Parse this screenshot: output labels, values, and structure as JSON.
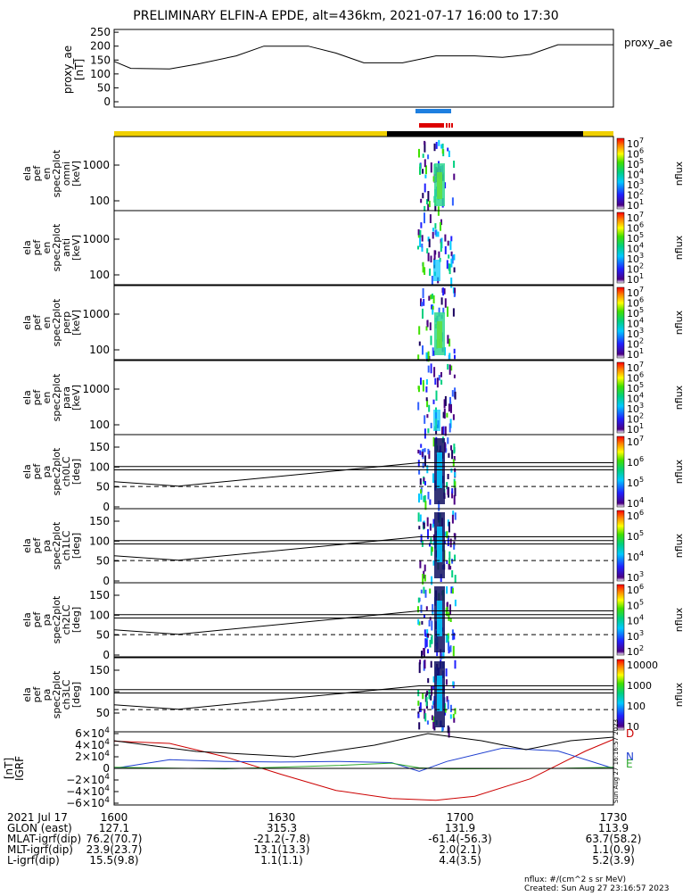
{
  "title": "PRELIMINARY ELFIN-A EPDE, alt=436km, 2021-07-17 16:00 to 17:30",
  "ae_panel": {
    "ylabel": "proxy_ae\n[nT]",
    "legend": "proxy_ae",
    "yticks": [
      "250",
      "200",
      "150",
      "100",
      "50",
      "0"
    ]
  },
  "spec_panels": [
    {
      "ylabel_lines": [
        "ela",
        "pef",
        "en",
        "spec2plot",
        "omni",
        "[keV]"
      ],
      "yticks": [
        "1000",
        "100"
      ],
      "cb_ticks": [
        "10^7",
        "10^6",
        "10^5",
        "10^4",
        "10^3",
        "10^2",
        "10^1"
      ],
      "cb_label": "nflux"
    },
    {
      "ylabel_lines": [
        "ela",
        "pef",
        "en",
        "spec2plot",
        "anti",
        "[keV]"
      ],
      "yticks": [
        "1000",
        "100"
      ],
      "cb_ticks": [
        "10^7",
        "10^6",
        "10^5",
        "10^4",
        "10^3",
        "10^2",
        "10^1"
      ],
      "cb_label": "nflux"
    },
    {
      "ylabel_lines": [
        "ela",
        "pef",
        "en",
        "spec2plot",
        "perp",
        "[keV]"
      ],
      "yticks": [
        "1000",
        "100"
      ],
      "cb_ticks": [
        "10^7",
        "10^6",
        "10^5",
        "10^4",
        "10^3",
        "10^2",
        "10^1"
      ],
      "cb_label": "nflux"
    },
    {
      "ylabel_lines": [
        "ela",
        "pef",
        "en",
        "spec2plot",
        "para",
        "[keV]"
      ],
      "yticks": [
        "1000",
        "100"
      ],
      "cb_ticks": [
        "10^7",
        "10^6",
        "10^5",
        "10^4",
        "10^3",
        "10^2",
        "10^1"
      ],
      "cb_label": "nflux"
    },
    {
      "ylabel_lines": [
        "ela",
        "pef",
        "pa",
        "spec2plot",
        "ch0LC",
        "[deg]"
      ],
      "yticks": [
        "150",
        "100",
        "50",
        "0"
      ],
      "cb_ticks": [
        "10^7",
        "10^6",
        "10^5",
        "10^4"
      ],
      "cb_label": "nflux"
    },
    {
      "ylabel_lines": [
        "ela",
        "pef",
        "pa",
        "spec2plot",
        "ch1LC",
        "[deg]"
      ],
      "yticks": [
        "150",
        "100",
        "50",
        "0"
      ],
      "cb_ticks": [
        "10^6",
        "10^5",
        "10^4",
        "10^3"
      ],
      "cb_label": "nflux"
    },
    {
      "ylabel_lines": [
        "ela",
        "pef",
        "pa",
        "spec2plot",
        "ch2LC",
        "[deg]"
      ],
      "yticks": [
        "150",
        "100",
        "50",
        "0"
      ],
      "cb_ticks": [
        "10^6",
        "10^5",
        "10^4",
        "10^3",
        "10^2"
      ],
      "cb_label": "nflux"
    },
    {
      "ylabel_lines": [
        "ela",
        "pef",
        "pa",
        "spec2plot",
        "ch3LC",
        "[deg]"
      ],
      "yticks": [
        "150",
        "100",
        "50"
      ],
      "cb_ticks": [
        "10000",
        "1000",
        "100",
        "10"
      ],
      "cb_label": "nflux"
    }
  ],
  "bfield_panel": {
    "ylabel": "[nT]\nIGRF",
    "yticks": [
      "6×10^4",
      "4×10^4",
      "2×10^4",
      "0",
      "−2×10^4",
      "−4×10^4",
      "−6×10^4"
    ],
    "legend": [
      {
        "name": "D",
        "color": "#cc0000"
      },
      {
        "name": "N",
        "color": "#1f3fd0"
      },
      {
        "name": "E",
        "color": "#2ea82e"
      }
    ],
    "side_text": "Sun Aug 27 16:16:57 2023"
  },
  "footer": {
    "rows": [
      [
        "2021 Jul 17",
        "1600",
        "1630",
        "1700",
        "1730"
      ],
      [
        "GLON (east)",
        "127.1",
        "315.3",
        "131.9",
        "113.9"
      ],
      [
        "MLAT-igrf(dip)",
        "76.2(70.7)",
        "-21.2(-7.8)",
        "-61.4(-56.3)",
        "63.7(58.2)"
      ],
      [
        "MLT-igrf(dip)",
        "23.9(23.7)",
        "13.1(13.3)",
        "2.0(2.1)",
        "1.1(0.9)"
      ],
      [
        "L-igrf(dip)",
        "15.5(9.8)",
        "1.1(1.1)",
        "4.4(3.5)",
        "5.2(3.9)"
      ]
    ],
    "units": "nflux: #/(cm^2 s sr MeV)",
    "created": "Created: Sun Aug 27 23:16:57 2023"
  },
  "colors": {
    "sunlit_bar": "#f0d000",
    "eclipse_bar": "#000000",
    "blue_bar": "#1e7fe0",
    "red_bar": "#dd0000",
    "ae_line": "#000000"
  },
  "chart_data": [
    {
      "type": "line",
      "title": "PRELIMINARY ELFIN-A EPDE, alt=436km, 2021-07-17 16:00 to 17:30",
      "series": [
        {
          "name": "proxy_ae",
          "x": [
            "16:00",
            "16:03",
            "16:10",
            "16:15",
            "16:22",
            "16:27",
            "16:35",
            "16:40",
            "16:45",
            "16:52",
            "16:58",
            "17:05",
            "17:10",
            "17:15",
            "17:20",
            "17:25",
            "17:30"
          ],
          "values": [
            145,
            120,
            118,
            135,
            165,
            200,
            200,
            175,
            140,
            140,
            165,
            165,
            160,
            170,
            205,
            205,
            205
          ]
        }
      ],
      "ylim": [
        0,
        260
      ],
      "xlim": [
        "16:00",
        "17:30"
      ]
    },
    {
      "type": "line",
      "series": [
        {
          "name": "D",
          "x": [
            "16:00",
            "16:10",
            "16:20",
            "16:30",
            "16:40",
            "16:50",
            "16:58",
            "17:05",
            "17:15",
            "17:25",
            "17:30"
          ],
          "values": [
            47000,
            43000,
            20000,
            -10000,
            -38000,
            -52000,
            -55000,
            -48000,
            -18000,
            30000,
            50000
          ]
        },
        {
          "name": "N",
          "x": [
            "16:00",
            "16:10",
            "16:20",
            "16:30",
            "16:40",
            "16:50",
            "16:55",
            "17:00",
            "17:10",
            "17:20",
            "17:30"
          ],
          "values": [
            0,
            15000,
            12000,
            11000,
            12000,
            10000,
            -5000,
            12000,
            35000,
            30000,
            0
          ]
        },
        {
          "name": "E",
          "x": [
            "16:00",
            "16:20",
            "16:40",
            "16:50",
            "16:55",
            "17:00",
            "17:20",
            "17:30"
          ],
          "values": [
            2000,
            -1000,
            5000,
            9000,
            1000,
            -1000,
            0,
            2000
          ]
        }
      ],
      "ylim": [
        -60000,
        60000
      ]
    }
  ]
}
